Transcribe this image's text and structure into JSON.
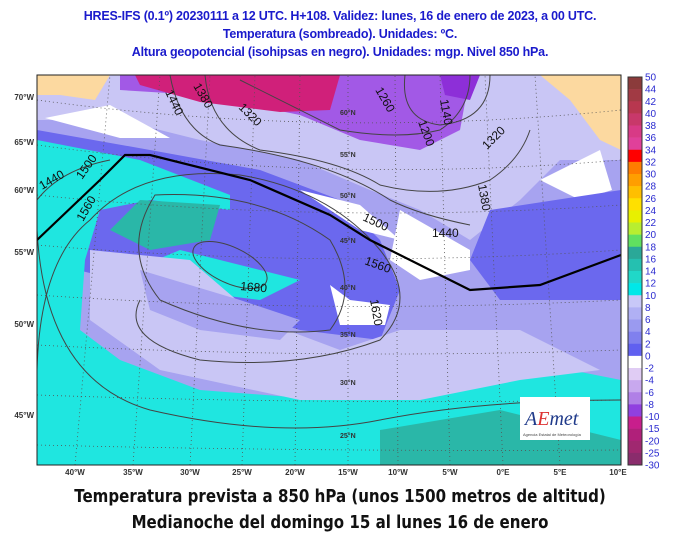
{
  "header": {
    "line1": "HRES-IFS (0.1º) 20230111 a 12 UTC. H+108. Validez: lunes, 16 de enero de 2023, a 00 UTC.",
    "line2": "Temperatura (sombreado). Unidades: ºC.",
    "line3": "Altura geopotencial (isohipsas en negro). Unidades: mgp. Nivel 850 hPa."
  },
  "map": {
    "left_axis_labels": [
      "70°W",
      "65°W",
      "60°W",
      "55°W",
      "50°W",
      "45°W"
    ],
    "bottom_axis_labels": [
      "40°W",
      "35°W",
      "30°W",
      "25°W",
      "20°W",
      "15°W",
      "10°W",
      "5°W",
      "0°E",
      "5°E",
      "10°E"
    ],
    "inner_lat_labels": [
      "60°N",
      "55°N",
      "50°N",
      "45°N",
      "40°N",
      "35°N",
      "30°N",
      "25°N"
    ],
    "contour_labels": [
      "1440",
      "1380",
      "1320",
      "1260",
      "1140",
      "1200",
      "1320",
      "1380",
      "1440",
      "1500",
      "1560",
      "1620",
      "1680",
      "1440",
      "1500",
      "1560"
    ],
    "colors": {
      "land_outside": "#fcd9a0",
      "cyan": "#1fe6e0",
      "teal": "#2ab7a8",
      "light_lavender": "#c9c6f5",
      "lavender": "#a7a3f0",
      "blue": "#6b68ee",
      "violet": "#a259e6",
      "purple": "#8d2fd8",
      "magenta": "#d0207a",
      "white": "#ffffff"
    }
  },
  "colorbar": {
    "labels": [
      "50",
      "44",
      "42",
      "40",
      "38",
      "36",
      "34",
      "32",
      "30",
      "28",
      "26",
      "24",
      "22",
      "20",
      "18",
      "16",
      "14",
      "12",
      "10",
      "8",
      "6",
      "4",
      "2",
      "0",
      "-2",
      "-4",
      "-6",
      "-8",
      "-10",
      "-15",
      "-20",
      "-25",
      "-30"
    ],
    "colors": [
      "#8b3b3b",
      "#a13a44",
      "#b8374f",
      "#c8386a",
      "#d83a86",
      "#e0409a",
      "#ff0000",
      "#ff7d00",
      "#ff9e00",
      "#ffbf00",
      "#ffe000",
      "#e8f000",
      "#b8ee30",
      "#60e060",
      "#2aa898",
      "#25c0b0",
      "#20d8c8",
      "#00e8e8",
      "#c8c8f8",
      "#b0b0f4",
      "#9a9af0",
      "#8080ee",
      "#6060f0",
      "#ffffff",
      "#e0ccf4",
      "#c8a8ee",
      "#b080e6",
      "#9040e0",
      "#c81e8c",
      "#b0207a",
      "#a02870",
      "#8a2c6c"
    ]
  },
  "logo": {
    "name": "AEmet",
    "subtitle": "Agencia Estatal de Meteorología"
  },
  "caption": {
    "line1": "Temperatura prevista a 850 hPa (unos 1500 metros de altitud)",
    "line2": "Medianoche del domingo 15 al lunes 16 de enero"
  }
}
